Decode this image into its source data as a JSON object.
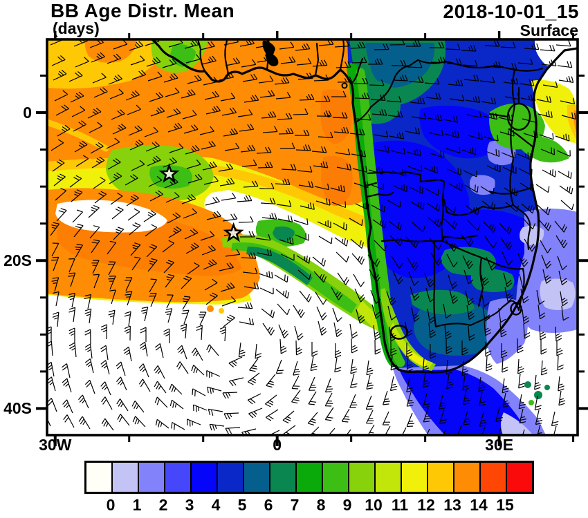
{
  "header": {
    "title": "BB Age Distr. Mean",
    "units": "(days)",
    "datetime": "2018-10-01_15",
    "level": "Surface"
  },
  "chart_data": {
    "type": "filled_contour_map",
    "title": "BB Age Distr. Mean",
    "units": "days",
    "datetime": "2018-10-01_15",
    "level": "Surface",
    "region": "Southern Africa and South Atlantic",
    "lon_range_deg": [
      -31.1,
      40.6
    ],
    "lat_range_deg": [
      -43.6,
      9.9
    ],
    "x_axis": {
      "major_ticks": [
        {
          "label": "30W",
          "lon": -30
        },
        {
          "label": "0",
          "lon": 0
        },
        {
          "label": "30E",
          "lon": 30
        }
      ],
      "minor_tick_lons": [
        -20,
        -10,
        10,
        20,
        40
      ]
    },
    "y_axis": {
      "major_ticks": [
        {
          "label": "0",
          "lat": 0
        },
        {
          "label": "20S",
          "lat": -20
        },
        {
          "label": "40S",
          "lat": -40
        }
      ],
      "minor_tick_lats": [
        5,
        -5,
        -10,
        -15,
        -25,
        -30,
        -35
      ]
    },
    "colorbar": {
      "labels": [
        "0",
        "1",
        "2",
        "3",
        "4",
        "5",
        "6",
        "7",
        "8",
        "9",
        "10",
        "11",
        "12",
        "13",
        "14",
        "15"
      ],
      "colors": [
        "#FFFFF8",
        "#C3C3F5",
        "#8282FA",
        "#4646FA",
        "#0505FA",
        "#0A28C8",
        "#055F8C",
        "#0A8750",
        "#0AAA0A",
        "#3CBE14",
        "#87D20A",
        "#C3E60A",
        "#F0F00A",
        "#FFC805",
        "#FF8C05",
        "#FF4605",
        "#FA0A0A"
      ]
    },
    "markers": [
      {
        "type": "star",
        "lon": -14.6,
        "lat": -8.3
      },
      {
        "type": "star",
        "lon": -5.9,
        "lat": -16.3
      }
    ],
    "overlays": [
      "surface wind barbs",
      "coastline",
      "country borders"
    ],
    "features": [
      "Oldest smoke (13-15 days, orange/red) over the Gulf of Guinea and eastern tropical Atlantic",
      "Aged plume (8-12 days, green/yellow) arcing southeast toward the Angola/Namibia coast with two star markers",
      "Fresh smoke (3-5 days, blue) covering the Congo basin and interior southern Africa",
      "Very fresh smoke (0-2 days, lavender) along East Africa and the Mozambique channel",
      "Smoke-free air (white) over the subtropical South Atlantic anticyclone"
    ]
  }
}
